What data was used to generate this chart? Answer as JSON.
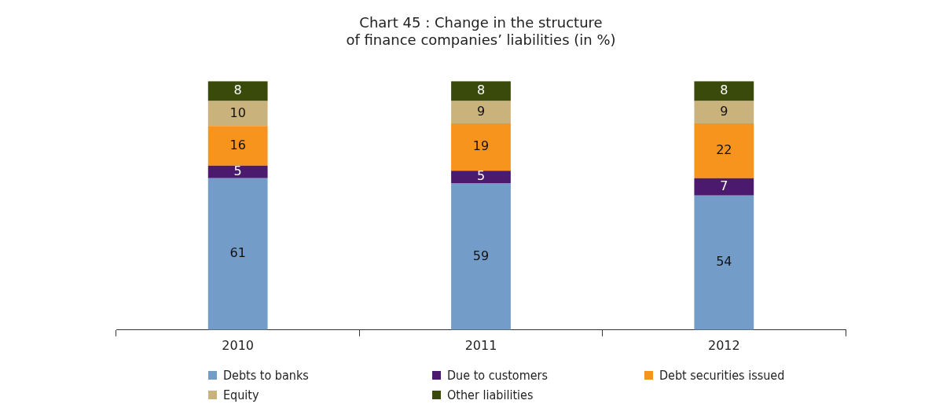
{
  "chart_data": {
    "type": "bar",
    "title": "Chart 45 : Change in the structure\nof finance companies’ liabilities (in %)",
    "categories": [
      "2010",
      "2011",
      "2012"
    ],
    "stacked": true,
    "data_labels": true,
    "legend": "bottom",
    "series": [
      {
        "name": "Debts to banks",
        "color": "#739cc9",
        "values": [
          61,
          59,
          54
        ]
      },
      {
        "name": "Due to customers",
        "color": "#4b1a6e",
        "values": [
          5,
          5,
          7
        ]
      },
      {
        "name": "Debt securities issued",
        "color": "#f7941d",
        "values": [
          16,
          19,
          22
        ]
      },
      {
        "name": "Equity",
        "color": "#c9b27c",
        "values": [
          10,
          9,
          9
        ]
      },
      {
        "name": "Other liabilities",
        "color": "#3a4a0a",
        "values": [
          8,
          8,
          8
        ]
      }
    ]
  }
}
